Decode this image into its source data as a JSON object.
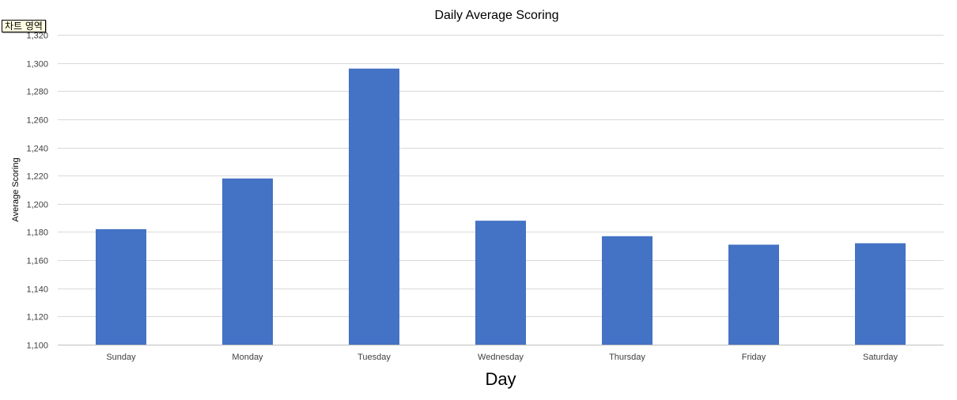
{
  "tooltip": "차트 영역",
  "colors": {
    "bar": "#4472c4",
    "grid": "#d9d9d9",
    "axis": "#bfbfbf",
    "text": "#404040",
    "title": "#000000"
  },
  "chart_data": {
    "type": "bar",
    "title": "Daily Average Scoring",
    "xlabel": "Day",
    "ylabel": "Average Scoring",
    "categories": [
      "Sunday",
      "Monday",
      "Tuesday",
      "Wednesday",
      "Thursday",
      "Friday",
      "Saturday"
    ],
    "values": [
      1182,
      1218,
      1296,
      1188,
      1177,
      1171,
      1172
    ],
    "ylim": [
      1100,
      1320
    ],
    "yticks": [
      1100,
      1120,
      1140,
      1160,
      1180,
      1200,
      1220,
      1240,
      1260,
      1280,
      1300,
      1320
    ],
    "ytick_labels": [
      "1,100",
      "1,120",
      "1,140",
      "1,160",
      "1,180",
      "1,200",
      "1,220",
      "1,240",
      "1,260",
      "1,280",
      "1,300",
      "1,320"
    ],
    "grid": true,
    "legend": "none"
  }
}
